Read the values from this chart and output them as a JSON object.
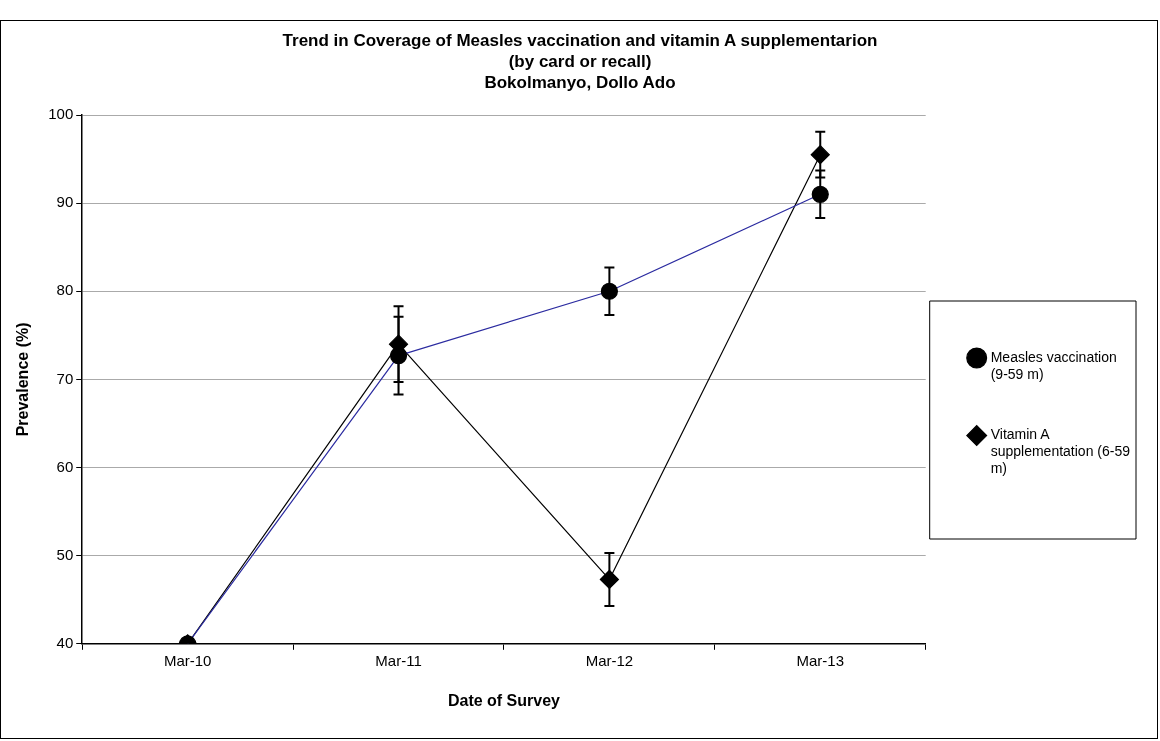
{
  "chart_data": {
    "type": "line",
    "title": "Trend in Coverage of Measles vaccination and vitamin A supplementarion\n(by card or recall)\nBokolmanyo, Dollo Ado",
    "xlabel": "Date of Survey",
    "ylabel": "Prevalence (%)",
    "categories": [
      "Mar-10",
      "Mar-11",
      "Mar-12",
      "Mar-13"
    ],
    "series": [
      {
        "name": "Measles vaccination (9-59 m)",
        "color": "#2b2ba0",
        "marker": "circle",
        "values": [
          40,
          72.7,
          80,
          91
        ],
        "errors": [
          null,
          4.4,
          2.7,
          2.7
        ]
      },
      {
        "name": "Vitamin A supplementation (6-59 m)",
        "color": "#000000",
        "marker": "diamond",
        "values": [
          40,
          74,
          47.3,
          95.5
        ],
        "errors": [
          null,
          4.3,
          3,
          2.6
        ]
      }
    ],
    "ylim": [
      40,
      100
    ],
    "yticks": [
      40,
      50,
      60,
      70,
      80,
      90,
      100
    ],
    "grid": "y",
    "legend": "right",
    "line_style": "solid"
  }
}
